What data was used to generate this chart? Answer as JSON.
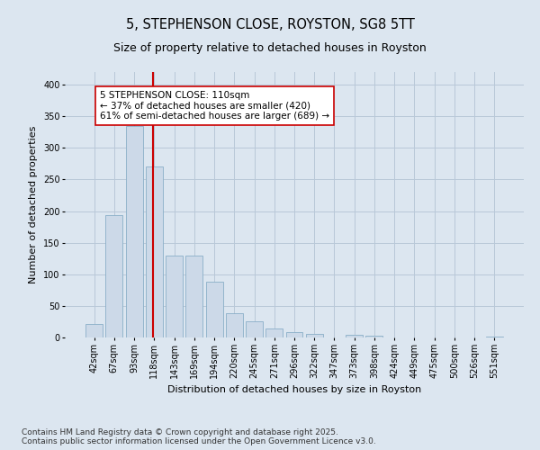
{
  "title_line1": "5, STEPHENSON CLOSE, ROYSTON, SG8 5TT",
  "title_line2": "Size of property relative to detached houses in Royston",
  "xlabel": "Distribution of detached houses by size in Royston",
  "ylabel": "Number of detached properties",
  "bar_color": "#ccd9e8",
  "bar_edge_color": "#8aaec8",
  "grid_color": "#b8c8d8",
  "bg_color": "#dce6f0",
  "categories": [
    "42sqm",
    "67sqm",
    "93sqm",
    "118sqm",
    "143sqm",
    "169sqm",
    "194sqm",
    "220sqm",
    "245sqm",
    "271sqm",
    "296sqm",
    "322sqm",
    "347sqm",
    "373sqm",
    "398sqm",
    "424sqm",
    "449sqm",
    "475sqm",
    "500sqm",
    "526sqm",
    "551sqm"
  ],
  "values": [
    22,
    193,
    335,
    270,
    130,
    130,
    88,
    38,
    25,
    14,
    8,
    5,
    0,
    4,
    3,
    0,
    0,
    0,
    0,
    0,
    2
  ],
  "vline_x": 2.95,
  "vline_color": "#cc0000",
  "annotation_text": "5 STEPHENSON CLOSE: 110sqm\n← 37% of detached houses are smaller (420)\n61% of semi-detached houses are larger (689) →",
  "annotation_box_color": "#ffffff",
  "annotation_box_edge": "#cc0000",
  "ylim": [
    0,
    420
  ],
  "yticks": [
    0,
    50,
    100,
    150,
    200,
    250,
    300,
    350,
    400
  ],
  "footer": "Contains HM Land Registry data © Crown copyright and database right 2025.\nContains public sector information licensed under the Open Government Licence v3.0.",
  "title_fontsize": 10.5,
  "subtitle_fontsize": 9,
  "axis_label_fontsize": 8,
  "tick_fontsize": 7,
  "annotation_fontsize": 7.5,
  "footer_fontsize": 6.5
}
